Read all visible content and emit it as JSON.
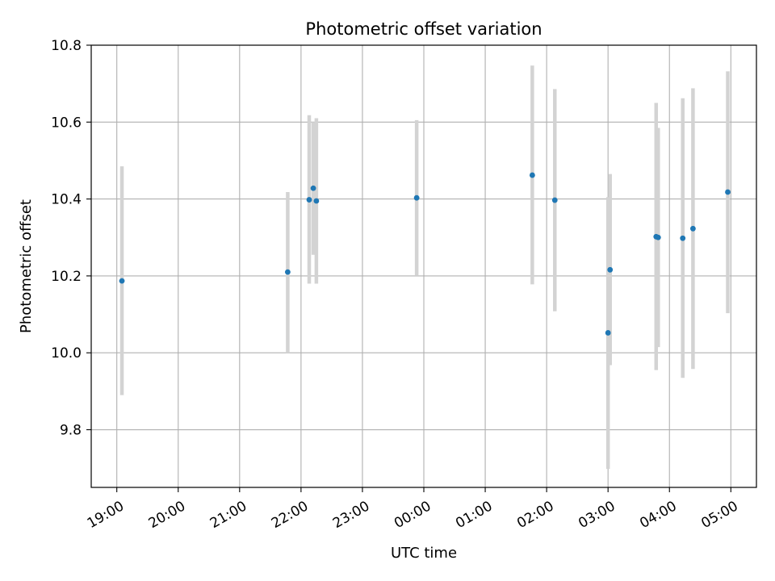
{
  "chart_data": {
    "type": "scatter",
    "title": "Photometric offset variation",
    "xlabel": "UTC time",
    "ylabel": "Photometric offset",
    "xlim": [
      "18:35",
      "05:25"
    ],
    "ylim": [
      9.65,
      10.8
    ],
    "x_ticks": [
      "19:00",
      "20:00",
      "21:00",
      "22:00",
      "23:00",
      "00:00",
      "01:00",
      "02:00",
      "03:00",
      "04:00",
      "05:00"
    ],
    "y_ticks": [
      "9.8",
      "10.0",
      "10.2",
      "10.4",
      "10.6",
      "10.8"
    ],
    "grid": true,
    "colors": {
      "point": "#1f77b4",
      "errorbar": "#d3d3d3",
      "grid": "#b0b0b0"
    },
    "points": [
      {
        "x": "19:05",
        "y": 10.187,
        "lo": 9.89,
        "hi": 10.485
      },
      {
        "x": "21:47",
        "y": 10.21,
        "lo": 10.0,
        "hi": 10.418
      },
      {
        "x": "22:08",
        "y": 10.398,
        "lo": 10.18,
        "hi": 10.618
      },
      {
        "x": "22:12",
        "y": 10.428,
        "lo": 10.255,
        "hi": 10.6
      },
      {
        "x": "22:15",
        "y": 10.395,
        "lo": 10.18,
        "hi": 10.61
      },
      {
        "x": "23:53",
        "y": 10.403,
        "lo": 10.2,
        "hi": 10.605
      },
      {
        "x": "01:46",
        "y": 10.462,
        "lo": 10.178,
        "hi": 10.747
      },
      {
        "x": "02:08",
        "y": 10.397,
        "lo": 10.108,
        "hi": 10.686
      },
      {
        "x": "03:00",
        "y": 10.052,
        "lo": 9.698,
        "hi": 10.405
      },
      {
        "x": "03:02",
        "y": 10.216,
        "lo": 9.968,
        "hi": 10.465
      },
      {
        "x": "03:47",
        "y": 10.302,
        "lo": 9.955,
        "hi": 10.65
      },
      {
        "x": "03:49",
        "y": 10.3,
        "lo": 10.015,
        "hi": 10.585
      },
      {
        "x": "04:13",
        "y": 10.298,
        "lo": 9.935,
        "hi": 10.662
      },
      {
        "x": "04:23",
        "y": 10.323,
        "lo": 9.958,
        "hi": 10.688
      },
      {
        "x": "04:57",
        "y": 10.418,
        "lo": 10.103,
        "hi": 10.732
      }
    ]
  }
}
